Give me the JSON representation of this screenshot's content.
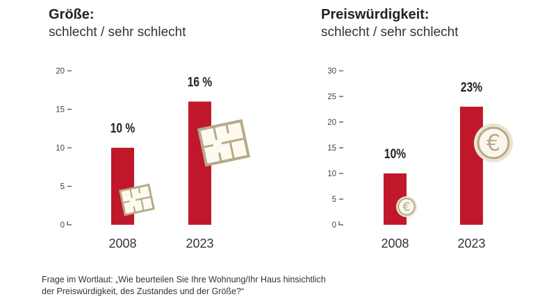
{
  "chart_data": [
    {
      "type": "bar",
      "title": "Größe:",
      "subtitle": "schlecht / sehr schlecht",
      "categories": [
        "2008",
        "2023"
      ],
      "values": [
        10,
        16
      ],
      "data_labels": [
        "10 %",
        "16 %"
      ],
      "ylim": [
        0,
        20
      ],
      "yticks": [
        0,
        5,
        10,
        15,
        20
      ],
      "grid": false,
      "icon": "floor-plan-icon",
      "bar_color": "#c0182a"
    },
    {
      "type": "bar",
      "title": "Preiswürdigkeit:",
      "subtitle": "schlecht / sehr schlecht",
      "categories": [
        "2008",
        "2023"
      ],
      "values": [
        10,
        23
      ],
      "data_labels": [
        "10%",
        "23%"
      ],
      "ylim": [
        0,
        30
      ],
      "yticks": [
        0,
        5,
        10,
        15,
        20,
        25,
        30
      ],
      "grid": false,
      "icon": "euro-coin-icon",
      "bar_color": "#c0182a"
    }
  ],
  "footnote": {
    "line1": "Frage im Wortlaut: „Wie beurteilen Sie Ihre Wohnung/Ihr Haus hinsichtlich",
    "line2": "der Preiswürdigkeit, des Zustandes und der Größe?“"
  }
}
